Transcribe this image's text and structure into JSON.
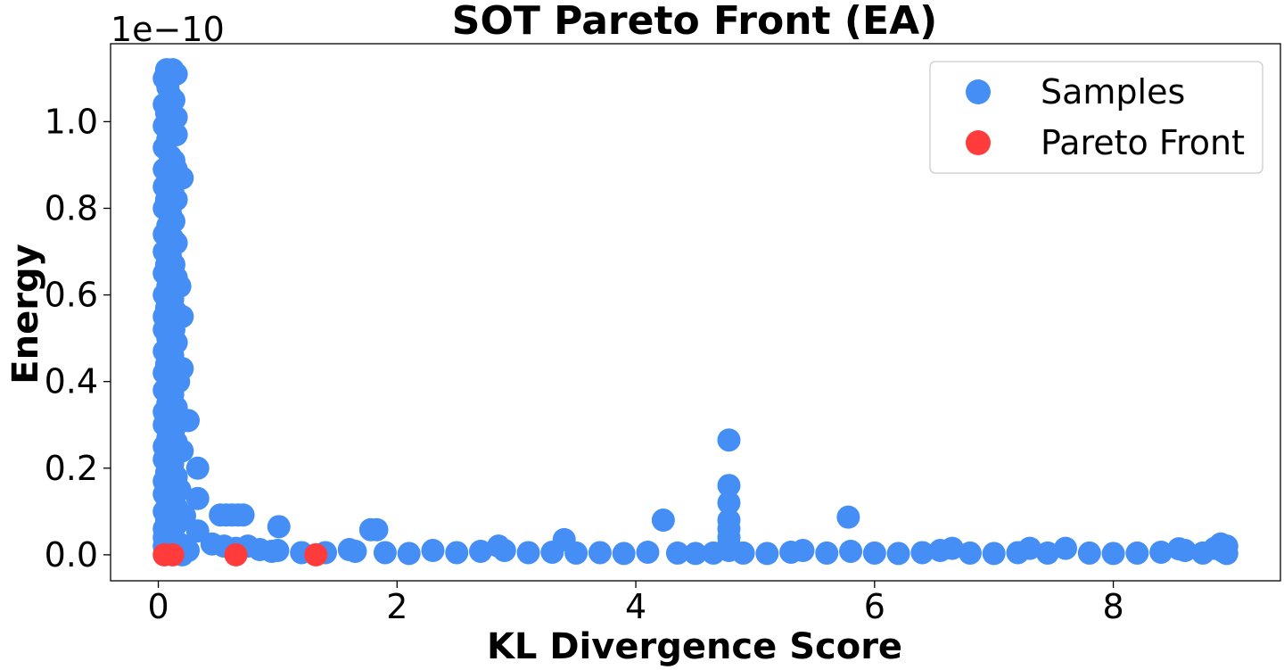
{
  "chart_data": {
    "type": "scatter",
    "title": "SOT Pareto Front (EA)",
    "xlabel": "KL Divergence Score",
    "ylabel": "Energy",
    "y_offset_label": "1e−10",
    "xlim": [
      -0.4,
      9.4
    ],
    "ylim": [
      -0.06,
      1.18
    ],
    "y_scale_note": "values in units of 1e-10",
    "x_ticks": [
      0,
      2,
      4,
      6,
      8
    ],
    "x_tick_labels": [
      "0",
      "2",
      "4",
      "6",
      "8"
    ],
    "y_ticks": [
      0.0,
      0.2,
      0.4,
      0.6,
      0.8,
      1.0
    ],
    "y_tick_labels": [
      "0.0",
      "0.2",
      "0.4",
      "0.6",
      "0.8",
      "1.0"
    ],
    "grid": false,
    "legend_position": "top-right",
    "series": [
      {
        "name": "Samples",
        "color": "#448ef6",
        "points": [
          [
            0.07,
            1.12
          ],
          [
            0.12,
            1.12
          ],
          [
            0.05,
            1.1
          ],
          [
            0.15,
            1.11
          ],
          [
            0.08,
            1.08
          ],
          [
            0.1,
            1.06
          ],
          [
            0.05,
            1.04
          ],
          [
            0.13,
            1.05
          ],
          [
            0.07,
            1.02
          ],
          [
            0.15,
            1.01
          ],
          [
            0.05,
            0.99
          ],
          [
            0.12,
            0.98
          ],
          [
            0.08,
            0.96
          ],
          [
            0.15,
            0.97
          ],
          [
            0.05,
            0.94
          ],
          [
            0.1,
            0.92
          ],
          [
            0.13,
            0.91
          ],
          [
            0.05,
            0.89
          ],
          [
            0.15,
            0.89
          ],
          [
            0.08,
            0.87
          ],
          [
            0.2,
            0.87
          ],
          [
            0.05,
            0.85
          ],
          [
            0.12,
            0.84
          ],
          [
            0.07,
            0.82
          ],
          [
            0.15,
            0.82
          ],
          [
            0.05,
            0.8
          ],
          [
            0.1,
            0.79
          ],
          [
            0.08,
            0.76
          ],
          [
            0.13,
            0.77
          ],
          [
            0.05,
            0.74
          ],
          [
            0.12,
            0.73
          ],
          [
            0.15,
            0.72
          ],
          [
            0.05,
            0.7
          ],
          [
            0.1,
            0.69
          ],
          [
            0.07,
            0.67
          ],
          [
            0.13,
            0.67
          ],
          [
            0.05,
            0.65
          ],
          [
            0.15,
            0.64
          ],
          [
            0.08,
            0.62
          ],
          [
            0.18,
            0.62
          ],
          [
            0.05,
            0.6
          ],
          [
            0.12,
            0.59
          ],
          [
            0.07,
            0.57
          ],
          [
            0.15,
            0.56
          ],
          [
            0.05,
            0.55
          ],
          [
            0.2,
            0.55
          ],
          [
            0.1,
            0.54
          ],
          [
            0.05,
            0.52
          ],
          [
            0.13,
            0.52
          ],
          [
            0.08,
            0.5
          ],
          [
            0.15,
            0.49
          ],
          [
            0.05,
            0.47
          ],
          [
            0.12,
            0.46
          ],
          [
            0.07,
            0.44
          ],
          [
            0.2,
            0.43
          ],
          [
            0.05,
            0.42
          ],
          [
            0.13,
            0.42
          ],
          [
            0.1,
            0.4
          ],
          [
            0.17,
            0.4
          ],
          [
            0.05,
            0.38
          ],
          [
            0.12,
            0.37
          ],
          [
            0.08,
            0.35
          ],
          [
            0.15,
            0.34
          ],
          [
            0.05,
            0.33
          ],
          [
            0.11,
            0.32
          ],
          [
            0.25,
            0.31
          ],
          [
            0.05,
            0.3
          ],
          [
            0.13,
            0.29
          ],
          [
            0.08,
            0.27
          ],
          [
            0.15,
            0.26
          ],
          [
            0.05,
            0.25
          ],
          [
            0.1,
            0.24
          ],
          [
            0.2,
            0.24
          ],
          [
            0.05,
            0.22
          ],
          [
            0.12,
            0.21
          ],
          [
            0.33,
            0.2
          ],
          [
            0.07,
            0.19
          ],
          [
            0.15,
            0.18
          ],
          [
            0.05,
            0.17
          ],
          [
            0.1,
            0.16
          ],
          [
            0.18,
            0.15
          ],
          [
            0.05,
            0.14
          ],
          [
            0.13,
            0.13
          ],
          [
            0.33,
            0.13
          ],
          [
            0.08,
            0.12
          ],
          [
            0.15,
            0.11
          ],
          [
            0.05,
            0.1
          ],
          [
            0.12,
            0.09
          ],
          [
            0.22,
            0.09
          ],
          [
            0.07,
            0.08
          ],
          [
            0.15,
            0.07
          ],
          [
            0.05,
            0.06
          ],
          [
            0.1,
            0.05
          ],
          [
            0.33,
            0.055
          ],
          [
            0.05,
            0.04
          ],
          [
            0.13,
            0.035
          ],
          [
            0.08,
            0.03
          ],
          [
            0.18,
            0.025
          ],
          [
            0.05,
            0.02
          ],
          [
            0.12,
            0.015
          ],
          [
            0.25,
            0.01
          ],
          [
            0.07,
            0.005
          ],
          [
            0.2,
            0.0
          ],
          [
            0.52,
            0.092
          ],
          [
            0.57,
            0.092
          ],
          [
            0.62,
            0.092
          ],
          [
            0.67,
            0.092
          ],
          [
            0.71,
            0.092
          ],
          [
            0.45,
            0.025
          ],
          [
            0.55,
            0.02
          ],
          [
            0.65,
            0.015
          ],
          [
            0.75,
            0.02
          ],
          [
            0.85,
            0.012
          ],
          [
            0.95,
            0.008
          ],
          [
            1.01,
            0.065
          ],
          [
            1.78,
            0.058
          ],
          [
            1.83,
            0.058
          ],
          [
            1.0,
            0.01
          ],
          [
            1.2,
            0.005
          ],
          [
            1.4,
            0.005
          ],
          [
            1.6,
            0.012
          ],
          [
            1.65,
            0.008
          ],
          [
            1.9,
            0.005
          ],
          [
            2.1,
            0.003
          ],
          [
            2.3,
            0.01
          ],
          [
            2.5,
            0.005
          ],
          [
            2.7,
            0.008
          ],
          [
            2.85,
            0.02
          ],
          [
            2.9,
            0.01
          ],
          [
            3.1,
            0.005
          ],
          [
            3.3,
            0.006
          ],
          [
            3.4,
            0.035
          ],
          [
            3.5,
            0.004
          ],
          [
            3.7,
            0.005
          ],
          [
            3.9,
            0.003
          ],
          [
            4.1,
            0.006
          ],
          [
            4.23,
            0.08
          ],
          [
            4.35,
            0.004
          ],
          [
            4.5,
            0.003
          ],
          [
            4.65,
            0.004
          ],
          [
            4.78,
            0.265
          ],
          [
            4.78,
            0.16
          ],
          [
            4.78,
            0.12
          ],
          [
            4.78,
            0.08
          ],
          [
            4.78,
            0.06
          ],
          [
            4.78,
            0.04
          ],
          [
            4.78,
            0.025
          ],
          [
            4.78,
            0.01
          ],
          [
            4.9,
            0.004
          ],
          [
            5.1,
            0.003
          ],
          [
            5.3,
            0.006
          ],
          [
            5.4,
            0.01
          ],
          [
            5.6,
            0.004
          ],
          [
            5.78,
            0.087
          ],
          [
            5.8,
            0.008
          ],
          [
            6.0,
            0.004
          ],
          [
            6.2,
            0.003
          ],
          [
            6.4,
            0.005
          ],
          [
            6.55,
            0.01
          ],
          [
            6.65,
            0.015
          ],
          [
            6.8,
            0.004
          ],
          [
            7.0,
            0.003
          ],
          [
            7.2,
            0.005
          ],
          [
            7.3,
            0.015
          ],
          [
            7.45,
            0.004
          ],
          [
            7.6,
            0.015
          ],
          [
            7.8,
            0.004
          ],
          [
            8.0,
            0.003
          ],
          [
            8.2,
            0.004
          ],
          [
            8.4,
            0.006
          ],
          [
            8.55,
            0.014
          ],
          [
            8.6,
            0.01
          ],
          [
            8.75,
            0.004
          ],
          [
            8.85,
            0.015
          ],
          [
            8.9,
            0.025
          ],
          [
            8.95,
            0.02
          ],
          [
            8.92,
            0.008
          ],
          [
            8.95,
            0.003
          ]
        ]
      },
      {
        "name": "Pareto Front",
        "color": "#ff3b3b",
        "points": [
          [
            0.05,
            0.0
          ],
          [
            0.12,
            0.0
          ],
          [
            0.65,
            0.0
          ],
          [
            1.32,
            0.0
          ]
        ]
      }
    ]
  }
}
